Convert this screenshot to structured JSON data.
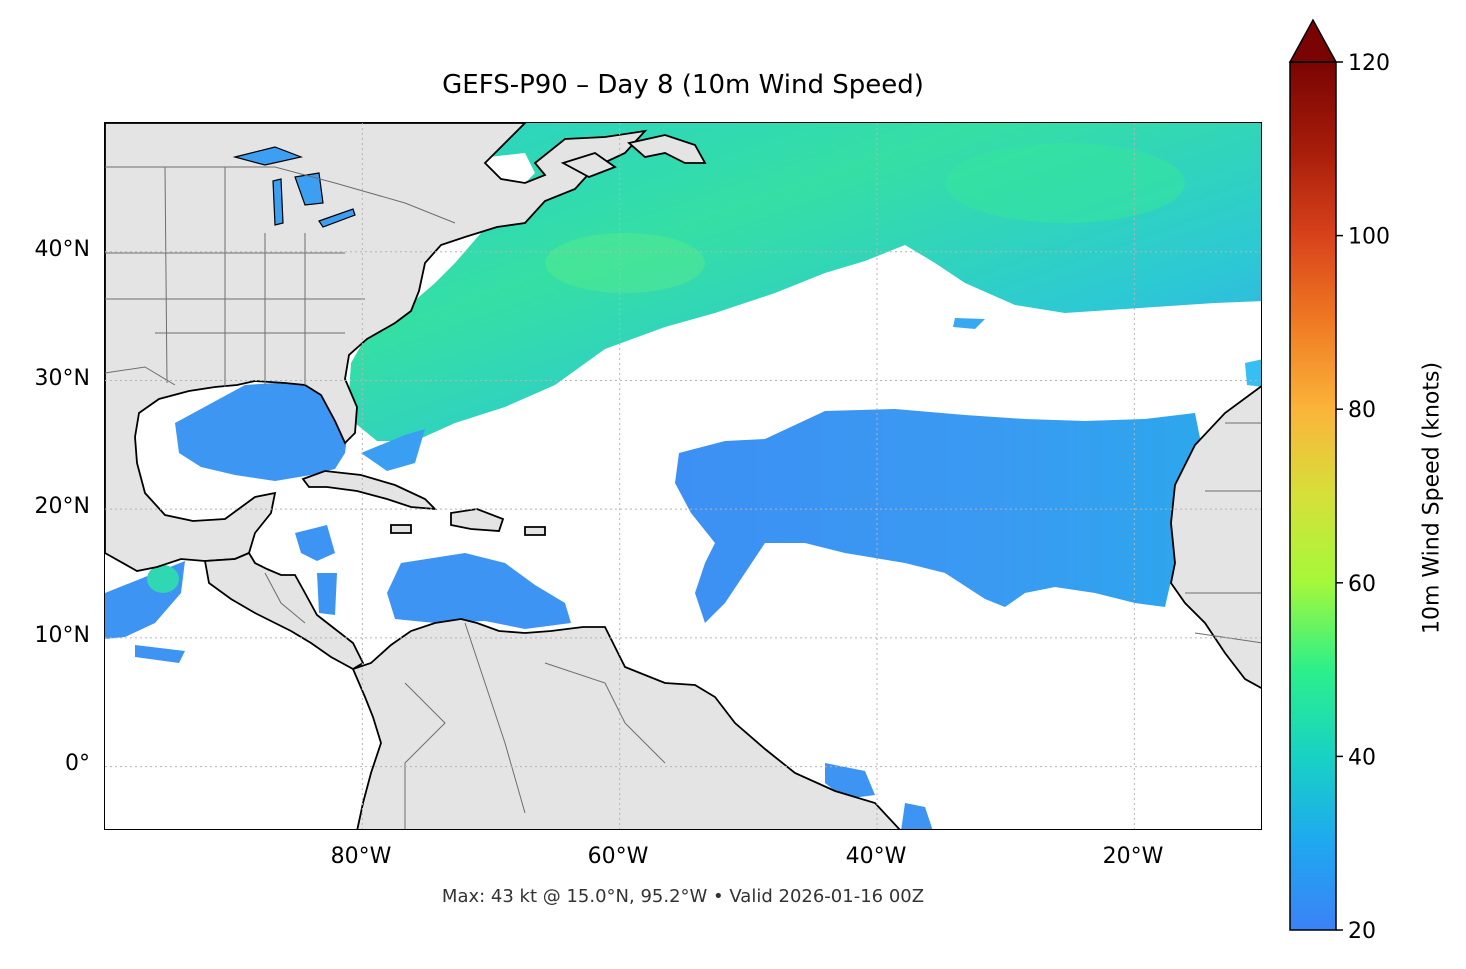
{
  "title": "GEFS-P90 – Day 8 (10m Wind Speed)",
  "footer": "Max: 43 kt @ 15.0°N, 95.2°W • Valid 2026-01-16 00Z",
  "map": {
    "extent": {
      "lon_min": -100,
      "lon_max": -10,
      "lat_min": -5,
      "lat_max": 50
    },
    "lat_ticks": [
      {
        "value": 40,
        "label": "40°N"
      },
      {
        "value": 30,
        "label": "30°N"
      },
      {
        "value": 20,
        "label": "20°N"
      },
      {
        "value": 10,
        "label": "10°N"
      },
      {
        "value": 0,
        "label": "0°"
      }
    ],
    "lon_ticks": [
      {
        "value": -80,
        "label": "80°W"
      },
      {
        "value": -60,
        "label": "60°W"
      },
      {
        "value": -40,
        "label": "40°W"
      },
      {
        "value": -20,
        "label": "20°W"
      }
    ],
    "gridlines": true,
    "colors": {
      "land": "#e4e4e4",
      "ocean": "#ffffff",
      "coastline": "#000000",
      "borders": "#6e6e6e"
    }
  },
  "colorbar": {
    "label": "10m Wind Speed (knots)",
    "min": 20,
    "max": 120,
    "extend": "max",
    "ticks": [
      {
        "value": 20,
        "label": "20"
      },
      {
        "value": 40,
        "label": "40"
      },
      {
        "value": 60,
        "label": "60"
      },
      {
        "value": 80,
        "label": "80"
      },
      {
        "value": 100,
        "label": "100"
      },
      {
        "value": 120,
        "label": "120"
      }
    ],
    "colormap": [
      "#3b82f6",
      "#1fa8f0",
      "#18d2c4",
      "#2cf08a",
      "#a4f83a",
      "#d6e03a",
      "#fbb43a",
      "#f07a23",
      "#d8421b",
      "#a61c0a",
      "#7a0403"
    ]
  },
  "wind_regions": [
    {
      "name": "Northwest Atlantic band",
      "speed_kt": 34
    },
    {
      "name": "Northeast Atlantic band",
      "speed_kt": 36
    },
    {
      "name": "Gulf of Mexico",
      "speed_kt": 24
    },
    {
      "name": "Caribbean Sea",
      "speed_kt": 24
    },
    {
      "name": "Tropical Atlantic trade winds",
      "speed_kt": 24
    },
    {
      "name": "Gulf of Tehuantepec",
      "speed_kt": 43
    }
  ]
}
